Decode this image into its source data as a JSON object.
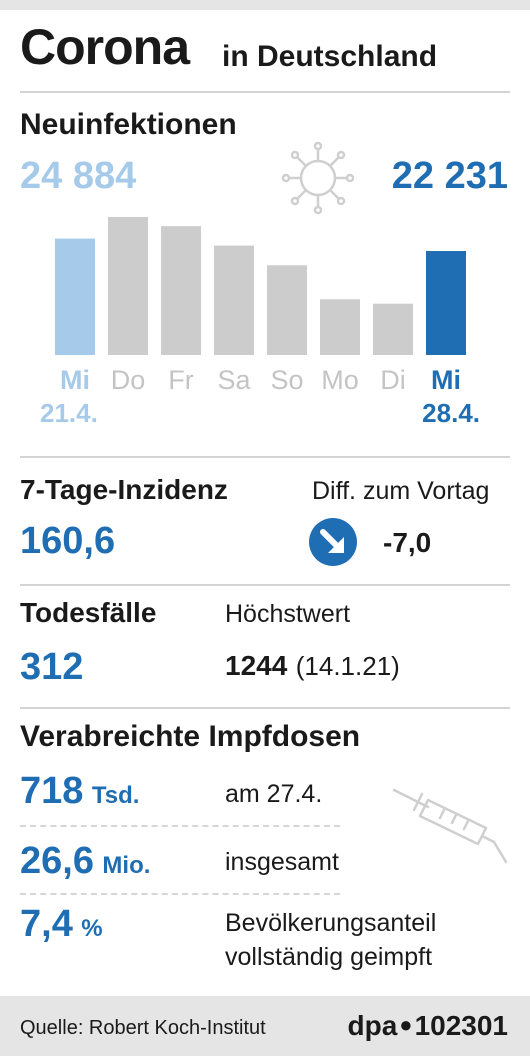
{
  "header": {
    "title": "Corona",
    "subtitle": "in Deutschland"
  },
  "neuinfektionen": {
    "title": "Neuinfektionen",
    "start_value": "24 884",
    "end_value": "22 231",
    "start_date": "21.4.",
    "end_date": "28.4."
  },
  "chart_data": {
    "type": "bar",
    "title": "Neuinfektionen",
    "categories": [
      "Mi",
      "Do",
      "Fr",
      "Sa",
      "So",
      "Mo",
      "Di",
      "Mi"
    ],
    "values": [
      24884,
      29518,
      27543,
      23392,
      19185,
      11907,
      10976,
      22231
    ],
    "ylim": [
      0,
      31000
    ],
    "highlight": {
      "first": "#a6cae9",
      "last": "#1f6db3",
      "other": "#cccccc"
    },
    "grid": false
  },
  "inzidenz": {
    "title": "7-Tage-Inzidenz",
    "value": "160,6",
    "diff_label": "Diff. zum Vortag",
    "diff_value": "-7,0",
    "diff_icon": "arrow-down-right-icon"
  },
  "todesfaelle": {
    "title": "Todesfälle",
    "value": "312",
    "max_label": "Höchstwert",
    "max_value": "1244",
    "max_date": "(14.1.21)"
  },
  "impfdosen": {
    "title": "Verabreichte Impfdosen",
    "rows": [
      {
        "value": "718",
        "unit": "Tsd.",
        "label": "am 27.4."
      },
      {
        "value": "26,6",
        "unit": "Mio.",
        "label": "insgesamt"
      },
      {
        "value": "7,4",
        "unit": "%",
        "label": "Bevölkerungsanteil",
        "label2": "vollständig geimpft"
      }
    ],
    "icon": "syringe-icon"
  },
  "footer": {
    "source": "Quelle: Robert Koch-Institut",
    "agency": "dpa",
    "code": "102301"
  },
  "colors": {
    "light_blue": "#a6cae9",
    "blue": "#1f6db3",
    "grey": "#cccccc",
    "text": "#1a1a1a"
  }
}
